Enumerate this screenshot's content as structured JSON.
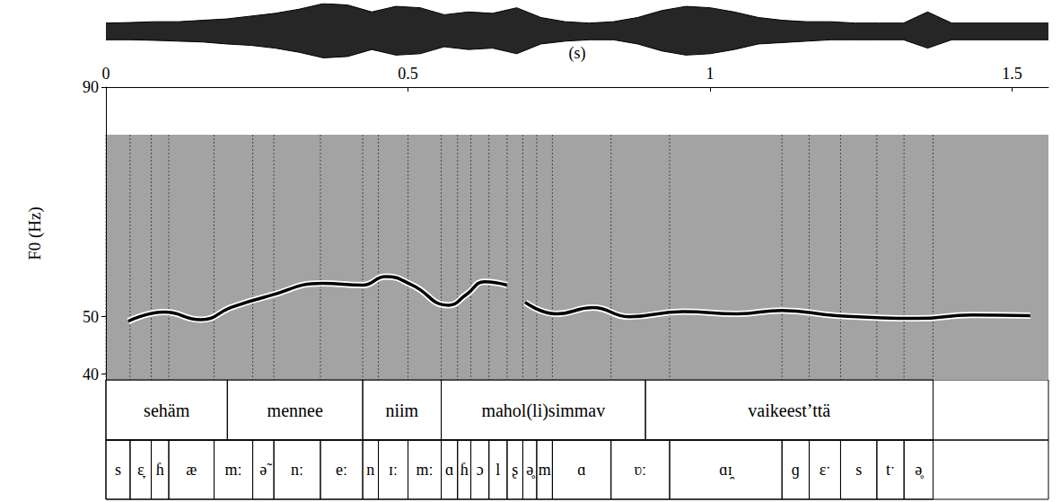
{
  "chart_data": {
    "type": "line",
    "x_label": "(s)",
    "y_label": "F0 (Hz)",
    "color": "#000000",
    "x": [
      0.037,
      0.097,
      0.157,
      0.209,
      0.269,
      0.358,
      0.425,
      0.463,
      0.507,
      0.567,
      0.597,
      0.627,
      0.664,
      0.679,
      0.694,
      0.746,
      0.806,
      0.866,
      0.955,
      1.045,
      1.119,
      1.209,
      1.343,
      1.433,
      1.53
    ],
    "values": [
      49.2,
      50.8,
      49.5,
      51.7,
      53.6,
      55.8,
      55.5,
      57.0,
      55.5,
      52.0,
      53.9,
      56.1,
      55.5,
      null,
      52.5,
      50.5,
      51.6,
      50.0,
      50.9,
      50.5,
      51.1,
      50.2,
      49.7,
      50.3,
      50.2
    ],
    "xlim": [
      0,
      1.56
    ],
    "xticks": [
      0,
      0.5,
      1,
      1.5
    ],
    "ylim": [
      39,
      90
    ],
    "yticks": [
      40,
      50,
      90
    ],
    "waveform": {
      "ylim": [
        -1,
        1
      ],
      "x": [
        0,
        0.04,
        0.08,
        0.12,
        0.16,
        0.2,
        0.24,
        0.28,
        0.32,
        0.36,
        0.4,
        0.44,
        0.48,
        0.52,
        0.56,
        0.6,
        0.64,
        0.68,
        0.72,
        0.76,
        0.8,
        0.84,
        0.88,
        0.92,
        0.96,
        1.0,
        1.04,
        1.08,
        1.12,
        1.16,
        1.2,
        1.24,
        1.28,
        1.32,
        1.36,
        1.4,
        1.44,
        1.48,
        1.52,
        1.56
      ],
      "max": [
        0.3,
        0.32,
        0.35,
        0.35,
        0.4,
        0.45,
        0.55,
        0.65,
        0.8,
        1.0,
        0.95,
        0.7,
        0.9,
        0.85,
        0.6,
        0.7,
        0.65,
        0.85,
        0.5,
        0.35,
        0.3,
        0.35,
        0.5,
        0.75,
        0.9,
        0.85,
        0.7,
        0.5,
        0.4,
        0.35,
        0.35,
        0.3,
        0.3,
        0.3,
        0.7,
        0.3,
        0.3,
        0.3,
        0.3,
        0.3
      ],
      "min": [
        -0.3,
        -0.3,
        -0.32,
        -0.35,
        -0.38,
        -0.45,
        -0.5,
        -0.6,
        -0.75,
        -0.95,
        -0.9,
        -0.65,
        -0.85,
        -0.8,
        -0.55,
        -0.65,
        -0.6,
        -0.8,
        -0.45,
        -0.35,
        -0.3,
        -0.3,
        -0.45,
        -0.7,
        -0.85,
        -0.8,
        -0.65,
        -0.45,
        -0.4,
        -0.35,
        -0.3,
        -0.3,
        -0.3,
        -0.3,
        -0.6,
        -0.3,
        -0.3,
        -0.3,
        -0.3,
        -0.3
      ]
    },
    "words": [
      {
        "label": "sehäm",
        "start": 0,
        "end": 0.201
      },
      {
        "label": "mennee",
        "start": 0.201,
        "end": 0.425
      },
      {
        "label": "niim",
        "start": 0.425,
        "end": 0.555
      },
      {
        "label": "mahol(li)simmav",
        "start": 0.555,
        "end": 0.893
      },
      {
        "label": "vaikeest’ttä",
        "start": 0.893,
        "end": 1.369
      }
    ],
    "phones": [
      {
        "label": "s",
        "start": 0,
        "end": 0.04
      },
      {
        "label": "ɛ̞",
        "start": 0.04,
        "end": 0.075
      },
      {
        "label": "ɦ",
        "start": 0.075,
        "end": 0.104
      },
      {
        "label": "æ",
        "start": 0.104,
        "end": 0.179
      },
      {
        "label": "mː",
        "start": 0.179,
        "end": 0.243
      },
      {
        "label": "ə̃",
        "start": 0.243,
        "end": 0.278
      },
      {
        "label": "nː",
        "start": 0.278,
        "end": 0.355
      },
      {
        "label": "eː",
        "start": 0.355,
        "end": 0.425
      },
      {
        "label": "n",
        "start": 0.425,
        "end": 0.451
      },
      {
        "label": "ɪː",
        "start": 0.451,
        "end": 0.5
      },
      {
        "label": "mː",
        "start": 0.5,
        "end": 0.555
      },
      {
        "label": "ɑ",
        "start": 0.555,
        "end": 0.582
      },
      {
        "label": "ɦ",
        "start": 0.582,
        "end": 0.604
      },
      {
        "label": "ɔ",
        "start": 0.604,
        "end": 0.634
      },
      {
        "label": "l",
        "start": 0.634,
        "end": 0.664
      },
      {
        "label": "ʂ",
        "start": 0.664,
        "end": 0.69
      },
      {
        "label": "ə̥",
        "start": 0.69,
        "end": 0.713
      },
      {
        "label": "m",
        "start": 0.713,
        "end": 0.739
      },
      {
        "label": "ɑ",
        "start": 0.739,
        "end": 0.836
      },
      {
        "label": "ʋː",
        "start": 0.836,
        "end": 0.933
      },
      {
        "label": "ɑɪ̯",
        "start": 0.933,
        "end": 1.119
      },
      {
        "label": "ɡ",
        "start": 1.119,
        "end": 1.164
      },
      {
        "label": "ɛˑ",
        "start": 1.164,
        "end": 1.216
      },
      {
        "label": "s",
        "start": 1.216,
        "end": 1.276
      },
      {
        "label": "tˑ",
        "start": 1.276,
        "end": 1.321
      },
      {
        "label": "ə̥",
        "start": 1.321,
        "end": 1.369
      }
    ]
  }
}
